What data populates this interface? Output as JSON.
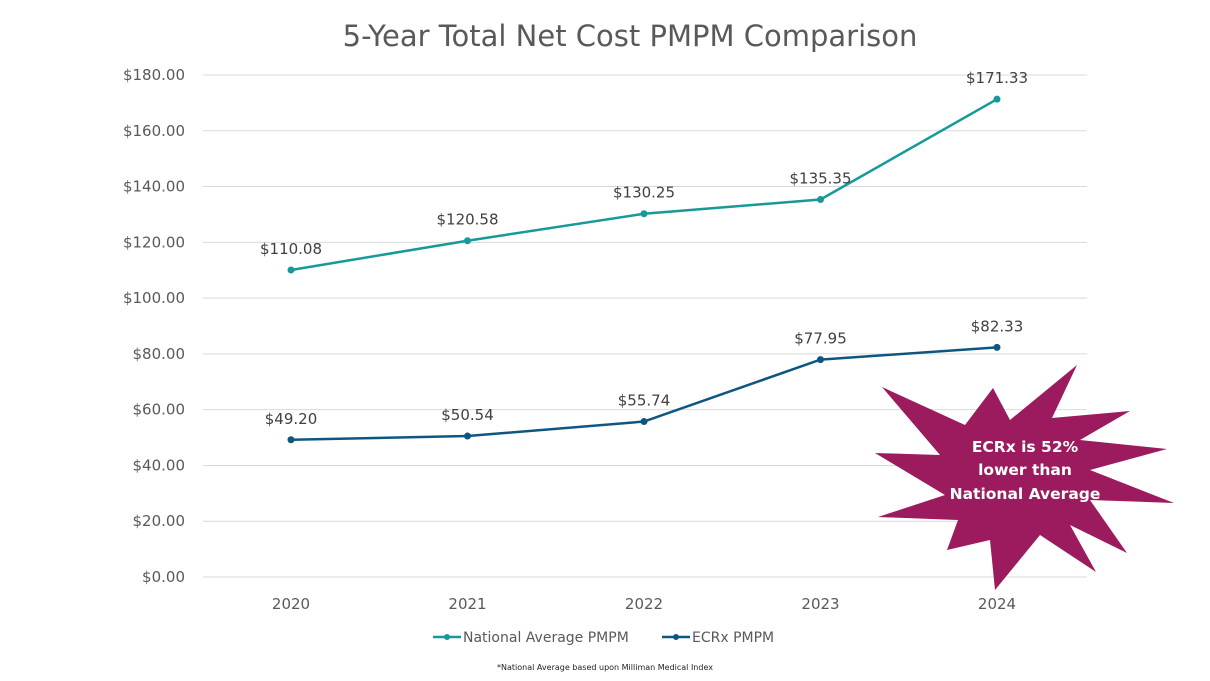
{
  "chart_data": {
    "type": "line",
    "title": "5-Year Total Net Cost PMPM Comparison",
    "categories": [
      "2020",
      "2021",
      "2022",
      "2023",
      "2024"
    ],
    "ylim": [
      0,
      180
    ],
    "yticks": [
      0,
      20,
      40,
      60,
      80,
      100,
      120,
      140,
      160,
      180
    ],
    "ytick_labels": [
      "$0.00",
      "$20.00",
      "$40.00",
      "$60.00",
      "$80.00",
      "$100.00",
      "$120.00",
      "$140.00",
      "$160.00",
      "$180.00"
    ],
    "grid": true,
    "legend_position": "bottom",
    "series": [
      {
        "name": "National Average PMPM",
        "color": "#17999A",
        "values": [
          110.08,
          120.58,
          130.25,
          135.35,
          171.33
        ],
        "labels": [
          "$110.08",
          "$120.58",
          "$130.25",
          "$135.35",
          "$171.33"
        ]
      },
      {
        "name": "ECRx PMPM",
        "color": "#0E5680",
        "values": [
          49.2,
          50.54,
          55.74,
          77.95,
          82.33
        ],
        "labels": [
          "$49.20",
          "$50.54",
          "$55.74",
          "$77.95",
          "$82.33"
        ]
      }
    ],
    "annotation": {
      "lines": [
        "ECRx is 52%",
        "lower than",
        "National Average"
      ],
      "color": "#9B1B5E"
    },
    "footnote": "*National Average based upon Milliman Medical Index"
  }
}
